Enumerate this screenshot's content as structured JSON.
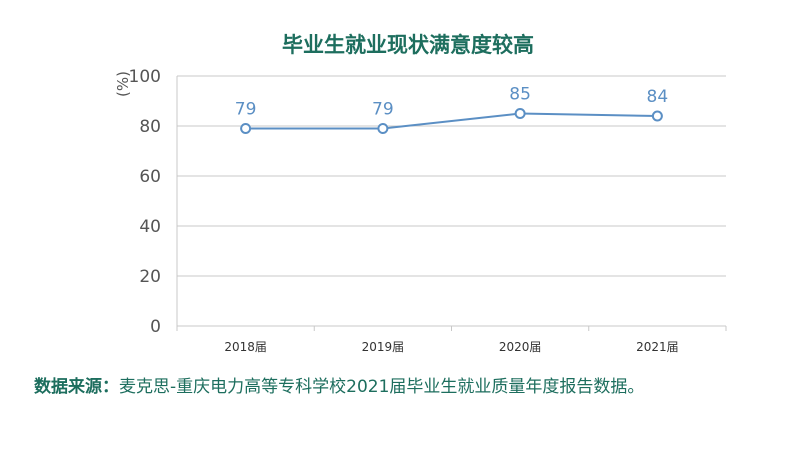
{
  "chart_data": {
    "type": "line",
    "title": "毕业生就业现状满意度较高",
    "ylabel": "(%)",
    "xlabel": "",
    "ylim": [
      0,
      100
    ],
    "yticks": [
      0,
      20,
      40,
      60,
      80,
      100
    ],
    "categories": [
      "2018届",
      "2019届",
      "2020届",
      "2021届"
    ],
    "series": [
      {
        "values": [
          79,
          79,
          85,
          84
        ]
      }
    ],
    "data_labels": [
      "79",
      "79",
      "85",
      "84"
    ],
    "grid": true,
    "colors": {
      "title": "#1d6e5e",
      "line": "#5b8fc4",
      "axis": "#555555",
      "grid": "#c8c8c8"
    }
  },
  "source": {
    "label": "数据来源：",
    "text": "麦克思-重庆电力高等专科学校2021届毕业生就业质量年度报告数据。"
  }
}
